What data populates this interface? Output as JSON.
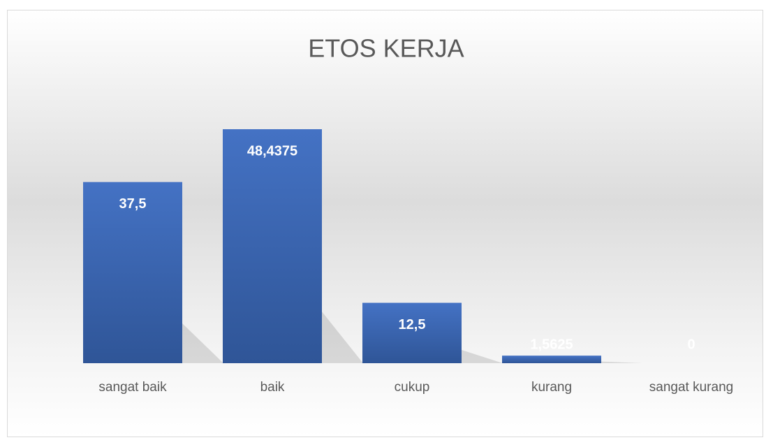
{
  "chart_data": {
    "type": "bar",
    "title": "ETOS KERJA",
    "categories": [
      "sangat baik",
      "baik",
      "cukup",
      "kurang",
      "sangat kurang"
    ],
    "values": [
      37.5,
      48.4375,
      12.5,
      1.5625,
      0
    ],
    "value_labels": [
      "37,5",
      "48,4375",
      "12,5",
      "1,5625",
      "0"
    ],
    "color": "#4472c4"
  }
}
